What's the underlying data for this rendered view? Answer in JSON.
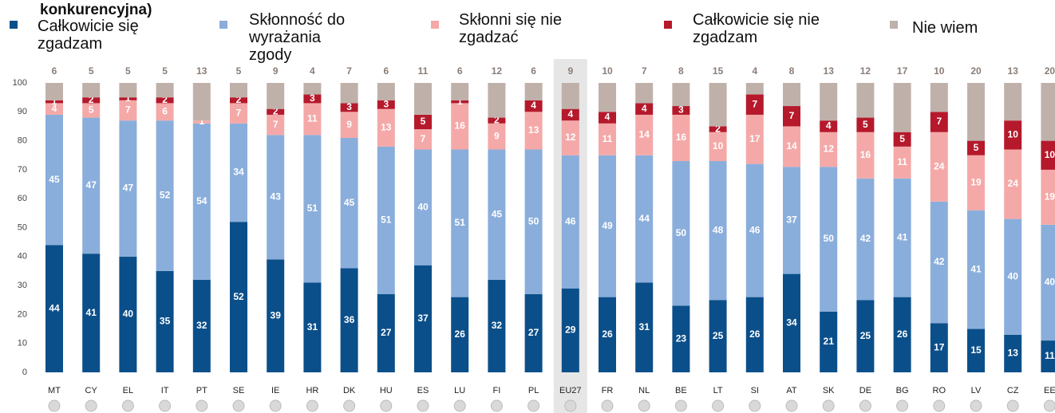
{
  "chart_data": {
    "type": "stacked_bar",
    "title": "konkurencyjna)",
    "categories": [
      "MT",
      "CY",
      "EL",
      "IT",
      "PT",
      "SE",
      "IE",
      "HR",
      "DK",
      "HU",
      "ES",
      "LU",
      "FI",
      "PL",
      "EU27",
      "FR",
      "NL",
      "BE",
      "LT",
      "SI",
      "AT",
      "SK",
      "DE",
      "BG",
      "RO",
      "LV",
      "CZ",
      "EE"
    ],
    "highlight": "EU27",
    "series": [
      {
        "name": "Całkowicie się zgadzam",
        "color": "#0b4f8a",
        "values": [
          44,
          41,
          40,
          35,
          32,
          52,
          39,
          31,
          36,
          27,
          37,
          26,
          32,
          27,
          29,
          26,
          31,
          23,
          25,
          26,
          34,
          21,
          25,
          26,
          17,
          15,
          13,
          11
        ]
      },
      {
        "name": "Skłonność do wyrażania zgody",
        "color": "#8aaedb",
        "values": [
          45,
          47,
          47,
          52,
          54,
          34,
          43,
          51,
          45,
          51,
          40,
          51,
          45,
          50,
          46,
          49,
          44,
          50,
          48,
          46,
          37,
          50,
          42,
          41,
          42,
          41,
          40,
          40
        ]
      },
      {
        "name": "Skłonni się nie zgadzać",
        "color": "#f4a9a8",
        "values": [
          4,
          5,
          7,
          6,
          1,
          7,
          7,
          11,
          9,
          13,
          7,
          16,
          9,
          13,
          12,
          11,
          14,
          16,
          10,
          17,
          14,
          12,
          16,
          11,
          24,
          19,
          24,
          19
        ]
      },
      {
        "name": "Całkowicie się nie zgadzam",
        "color": "#b5192b",
        "values": [
          1,
          2,
          1,
          2,
          0,
          2,
          2,
          3,
          3,
          3,
          5,
          1,
          2,
          4,
          4,
          4,
          4,
          3,
          2,
          7,
          7,
          4,
          5,
          5,
          7,
          5,
          10,
          10
        ]
      },
      {
        "name": "Nie wiem",
        "color": "#bfb1aa",
        "values": [
          6,
          5,
          5,
          5,
          13,
          5,
          9,
          4,
          7,
          6,
          11,
          6,
          12,
          6,
          9,
          10,
          7,
          8,
          15,
          4,
          8,
          13,
          12,
          17,
          10,
          20,
          13,
          20
        ]
      }
    ],
    "ylim": [
      0,
      100
    ],
    "yticks": [
      0,
      10,
      20,
      30,
      40,
      50,
      60,
      70,
      80,
      90,
      100
    ],
    "grid": false
  }
}
